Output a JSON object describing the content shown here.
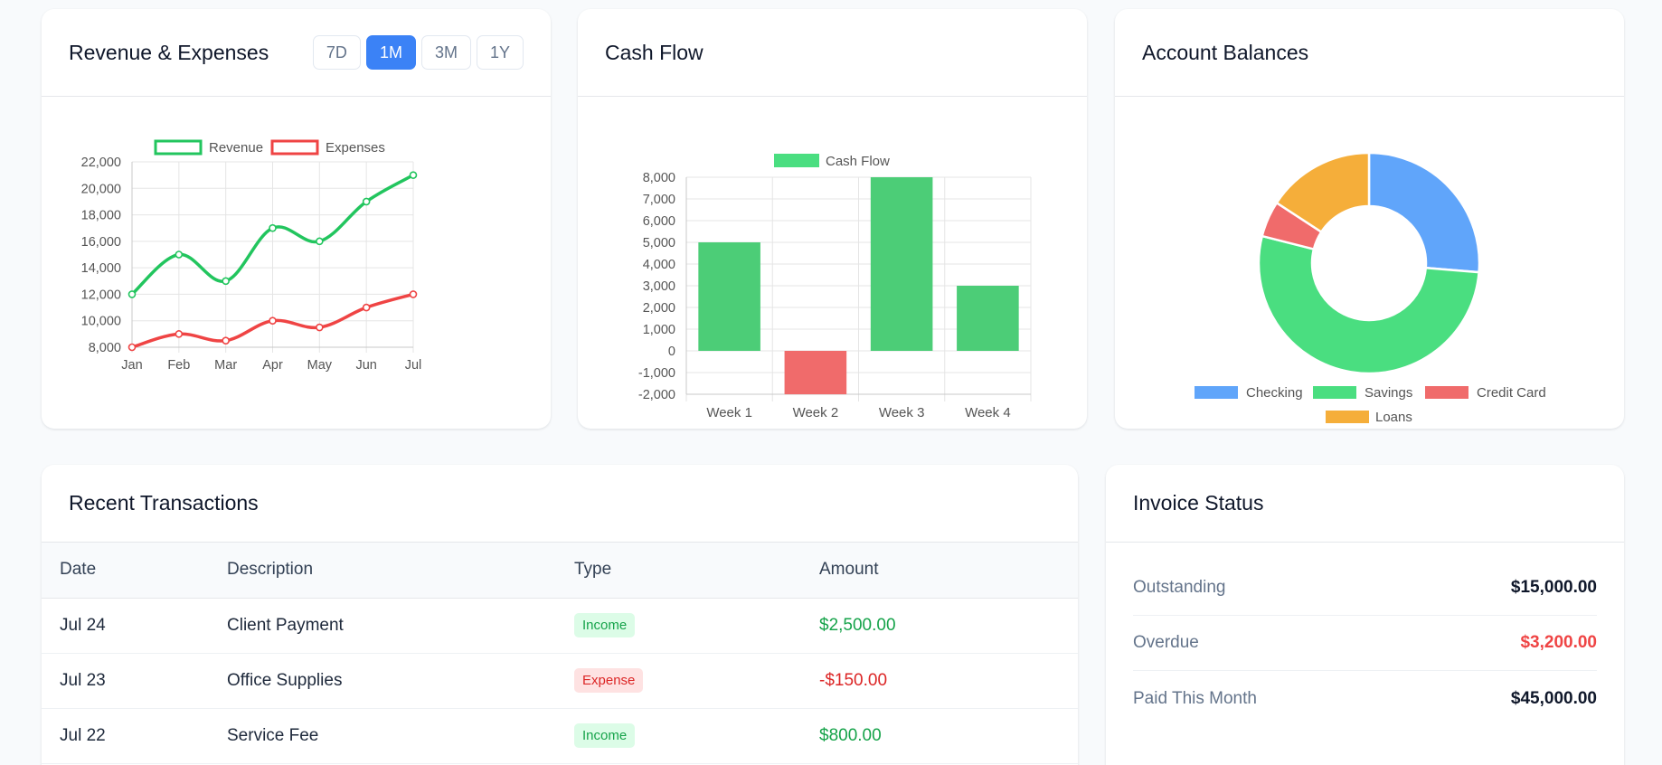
{
  "colors": {
    "primary": "#3b82f6",
    "green": "#22c55e",
    "red": "#ef4444",
    "blue": "#60a5fa",
    "orange": "#f5ae3a"
  },
  "revenue_card": {
    "title": "Revenue & Expenses",
    "ranges": [
      "7D",
      "1M",
      "3M",
      "1Y"
    ],
    "active_range": "1M"
  },
  "cashflow_card": {
    "title": "Cash Flow"
  },
  "balances_card": {
    "title": "Account Balances"
  },
  "transactions_card": {
    "title": "Recent Transactions",
    "columns": [
      "Date",
      "Description",
      "Type",
      "Amount"
    ],
    "rows": [
      {
        "date": "Jul 24",
        "description": "Client Payment",
        "type": "Income",
        "amount": "$2,500.00"
      },
      {
        "date": "Jul 23",
        "description": "Office Supplies",
        "type": "Expense",
        "amount": "-$150.00"
      },
      {
        "date": "Jul 22",
        "description": "Service Fee",
        "type": "Income",
        "amount": "$800.00"
      }
    ]
  },
  "invoice_card": {
    "title": "Invoice Status",
    "items": [
      {
        "label": "Outstanding",
        "value": "$15,000.00",
        "status": "normal"
      },
      {
        "label": "Overdue",
        "value": "$3,200.00",
        "status": "overdue"
      },
      {
        "label": "Paid This Month",
        "value": "$45,000.00",
        "status": "normal"
      }
    ]
  },
  "chart_data": [
    {
      "type": "line",
      "categories": [
        "Jan",
        "Feb",
        "Mar",
        "Apr",
        "May",
        "Jun",
        "Jul"
      ],
      "series": [
        {
          "name": "Revenue",
          "color": "#22c55e",
          "values": [
            12000,
            15000,
            13000,
            17000,
            16000,
            19000,
            21000
          ]
        },
        {
          "name": "Expenses",
          "color": "#ef4444",
          "values": [
            8000,
            9000,
            8500,
            10000,
            9500,
            11000,
            12000
          ]
        }
      ],
      "ylim": [
        8000,
        22000
      ],
      "yticks": [
        "8,000",
        "10,000",
        "12,000",
        "14,000",
        "16,000",
        "18,000",
        "20,000",
        "22,000"
      ],
      "grid": true,
      "legend": "top"
    },
    {
      "type": "bar",
      "categories": [
        "Week 1",
        "Week 2",
        "Week 3",
        "Week 4"
      ],
      "series": [
        {
          "name": "Cash Flow",
          "values": [
            5000,
            -2000,
            8000,
            3000
          ]
        }
      ],
      "ylim": [
        -2000,
        8000
      ],
      "yticks": [
        "-2,000",
        "-1,000",
        "0",
        "1,000",
        "2,000",
        "3,000",
        "4,000",
        "5,000",
        "6,000",
        "7,000",
        "8,000"
      ],
      "grid": true,
      "legend": "top"
    },
    {
      "type": "pie",
      "labels": [
        "Checking",
        "Savings",
        "Credit Card",
        "Loans"
      ],
      "values": [
        25000,
        50000,
        5000,
        15000
      ],
      "colors": [
        "#60a5fa",
        "#4ade80",
        "#f06b6b",
        "#f5ae3a"
      ],
      "legend": "bottom"
    }
  ]
}
